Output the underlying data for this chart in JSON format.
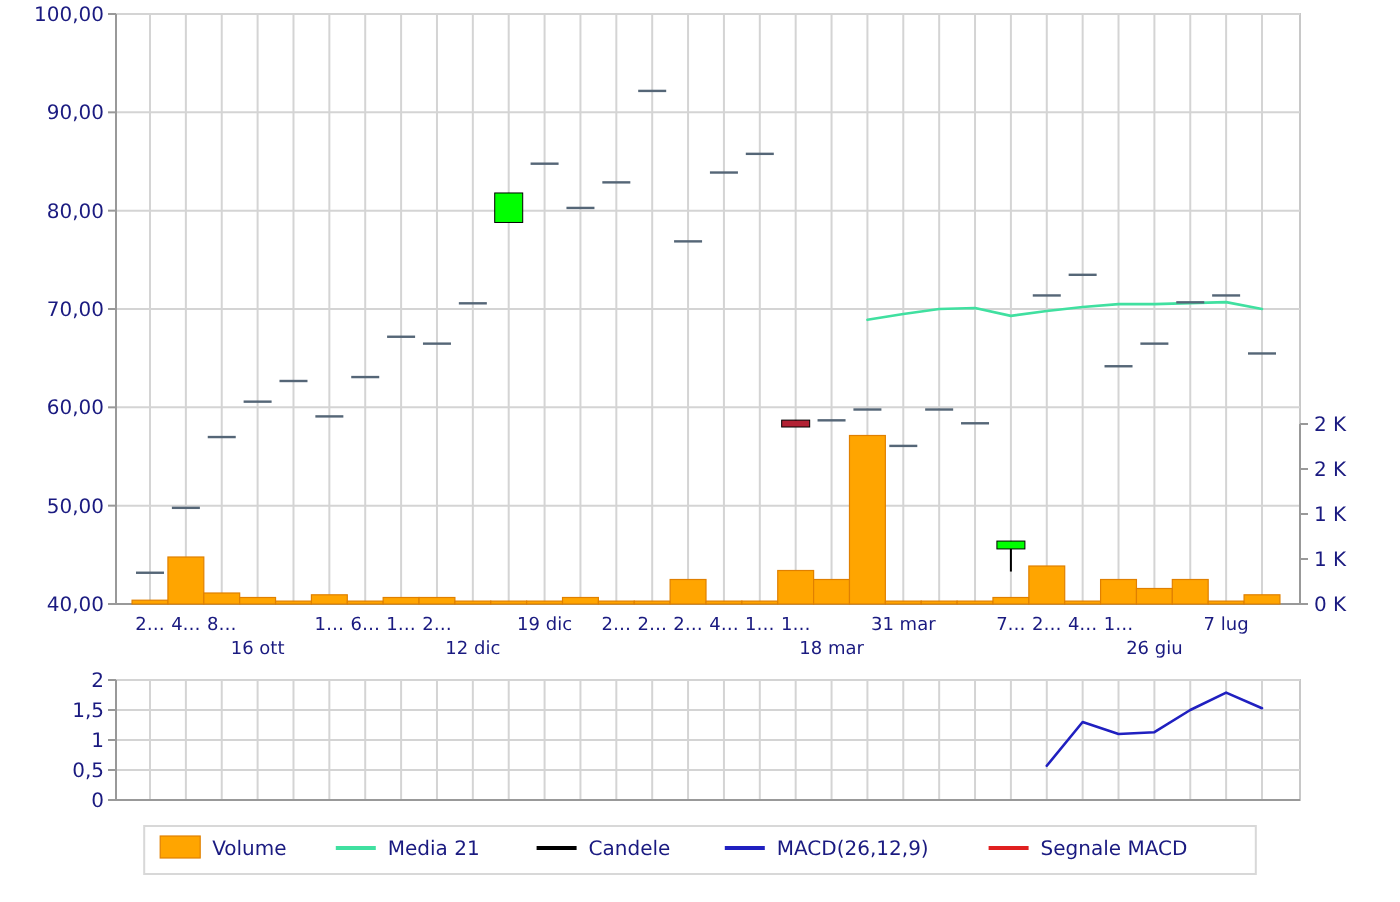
{
  "chart_data": [
    {
      "type": "candlestick",
      "categories": [
        "2…",
        "4…",
        "8…",
        "16 ott",
        null,
        "1…",
        "6…",
        "1…",
        "2…",
        "12 dic",
        null,
        "19 dic",
        null,
        "2…",
        "2…",
        "2…",
        "4…",
        "1…",
        "1…",
        "18 mar",
        null,
        "31 mar",
        null,
        null,
        "7…",
        "2…",
        "4…",
        "1…",
        "26 giu",
        null,
        "7 lug",
        null
      ],
      "ylim": [
        40,
        100
      ],
      "yticks": [
        {
          "value": 40,
          "label": "40,00"
        },
        {
          "value": 50,
          "label": "50,00"
        },
        {
          "value": 60,
          "label": "60,00"
        },
        {
          "value": 70,
          "label": "70,00"
        },
        {
          "value": 80,
          "label": "80,00"
        },
        {
          "value": 90,
          "label": "90,00"
        },
        {
          "value": 100,
          "label": "100,00"
        }
      ],
      "y2lim": [
        0,
        2000
      ],
      "y2ticks": [
        {
          "value": 0,
          "label": "0 K"
        },
        {
          "value": 500,
          "label": "1 K"
        },
        {
          "value": 1000,
          "label": "1 K"
        },
        {
          "value": 1500,
          "label": "2 K"
        },
        {
          "value": 2000,
          "label": "2 K"
        }
      ],
      "grid": true,
      "legend": "bottom",
      "series": [
        {
          "type": "bar",
          "name": "Volume",
          "color": "#ffa500",
          "axis": "y2",
          "values": [
            20,
            500,
            100,
            50,
            10,
            80,
            10,
            50,
            50,
            10,
            10,
            10,
            50,
            10,
            10,
            250,
            10,
            10,
            350,
            250,
            1850,
            10,
            10,
            10,
            50,
            400,
            10,
            250,
            150,
            250,
            10,
            80
          ]
        },
        {
          "type": "line",
          "name": "Media 21",
          "color": "#40e0a0",
          "values": [
            null,
            null,
            null,
            null,
            null,
            null,
            null,
            null,
            null,
            null,
            null,
            null,
            null,
            null,
            null,
            null,
            null,
            null,
            null,
            null,
            68.9,
            69.5,
            70.0,
            70.1,
            69.3,
            69.8,
            70.2,
            70.5,
            70.5,
            70.6,
            70.7,
            70.0
          ]
        },
        {
          "name": "Candele",
          "color": "#000000",
          "colors": [
            "#556677",
            "#556677",
            "#556677",
            "#556677",
            "#556677",
            "#556677",
            "#556677",
            "#556677",
            "#556677",
            "#556677",
            "#00ff00",
            "#556677",
            "#556677",
            "#556677",
            "#556677",
            "#556677",
            "#556677",
            "#556677",
            "#b22234",
            "#556677",
            "#556677",
            "#556677",
            "#556677",
            "#556677",
            "#00ff00",
            "#556677",
            "#556677",
            "#556677",
            "#556677",
            "#556677",
            "#556677",
            "#556677"
          ],
          "ohlc": [
            [
              43.3,
              43.3,
              43.3,
              43.3
            ],
            [
              49.9,
              49.9,
              49.9,
              49.9
            ],
            [
              57.1,
              57.1,
              57.1,
              57.1
            ],
            [
              60.7,
              60.7,
              60.7,
              60.7
            ],
            [
              62.8,
              62.8,
              62.8,
              62.8
            ],
            [
              59.2,
              59.2,
              59.2,
              59.2
            ],
            [
              63.2,
              63.2,
              63.2,
              63.2
            ],
            [
              67.3,
              67.3,
              67.3,
              67.3
            ],
            [
              66.6,
              66.6,
              66.6,
              66.6
            ],
            [
              70.7,
              70.7,
              70.7,
              70.7
            ],
            [
              78.8,
              81.8,
              78.8,
              81.8
            ],
            [
              84.9,
              84.9,
              84.9,
              84.9
            ],
            [
              80.4,
              80.4,
              80.4,
              80.4
            ],
            [
              83.0,
              83.0,
              83.0,
              83.0
            ],
            [
              92.3,
              92.3,
              92.3,
              92.3
            ],
            [
              77.0,
              77.0,
              77.0,
              77.0
            ],
            [
              84.0,
              84.0,
              84.0,
              84.0
            ],
            [
              85.9,
              85.9,
              85.9,
              85.9
            ],
            [
              58.7,
              58.7,
              58.0,
              58.0
            ],
            [
              58.8,
              58.8,
              58.8,
              58.8
            ],
            [
              59.9,
              59.9,
              59.9,
              59.9
            ],
            [
              56.2,
              56.2,
              56.2,
              56.2
            ],
            [
              59.9,
              59.9,
              59.9,
              59.9
            ],
            [
              58.5,
              58.5,
              58.5,
              58.5
            ],
            [
              45.6,
              46.4,
              43.3,
              46.4
            ],
            [
              71.5,
              71.5,
              71.5,
              71.5
            ],
            [
              73.6,
              73.6,
              73.6,
              73.6
            ],
            [
              64.3,
              64.3,
              64.3,
              64.3
            ],
            [
              66.6,
              66.6,
              66.6,
              66.6
            ],
            [
              70.8,
              70.8,
              70.8,
              70.8
            ],
            [
              71.5,
              71.5,
              71.5,
              71.5
            ],
            [
              65.6,
              65.6,
              65.6,
              65.6
            ]
          ]
        }
      ]
    },
    {
      "type": "line",
      "categories": [
        null,
        null,
        null,
        null,
        null,
        null,
        null,
        null,
        null,
        null,
        null,
        null,
        null,
        null,
        null,
        null,
        null,
        null,
        null,
        null,
        null,
        null,
        null,
        null,
        null,
        null,
        null,
        null,
        null,
        null,
        null,
        null
      ],
      "tick_labels": "y",
      "ylim": [
        0,
        2
      ],
      "yticks": [
        0,
        {
          "value": 0.5,
          "label": "0,5"
        },
        1,
        {
          "value": 1.5,
          "label": "1,5"
        },
        2
      ],
      "grid": true,
      "legend": "bottom",
      "series": [
        {
          "name": "MACD(26,12,9)",
          "color": "#2020c0",
          "values": [
            null,
            null,
            null,
            null,
            null,
            null,
            null,
            null,
            null,
            null,
            null,
            null,
            null,
            null,
            null,
            null,
            null,
            null,
            null,
            null,
            null,
            null,
            null,
            null,
            null,
            0.57,
            1.3,
            1.1,
            1.13,
            1.5,
            1.79,
            1.53
          ]
        },
        {
          "name": "Segnale MACD",
          "color": "#e02020",
          "values": [
            null,
            null,
            null,
            null,
            null,
            null,
            null,
            null,
            null,
            null,
            null,
            null,
            null,
            null,
            null,
            null,
            null,
            null,
            null,
            null,
            null,
            null,
            null,
            null,
            null,
            null,
            null,
            null,
            null,
            null,
            null,
            null
          ]
        }
      ]
    }
  ]
}
